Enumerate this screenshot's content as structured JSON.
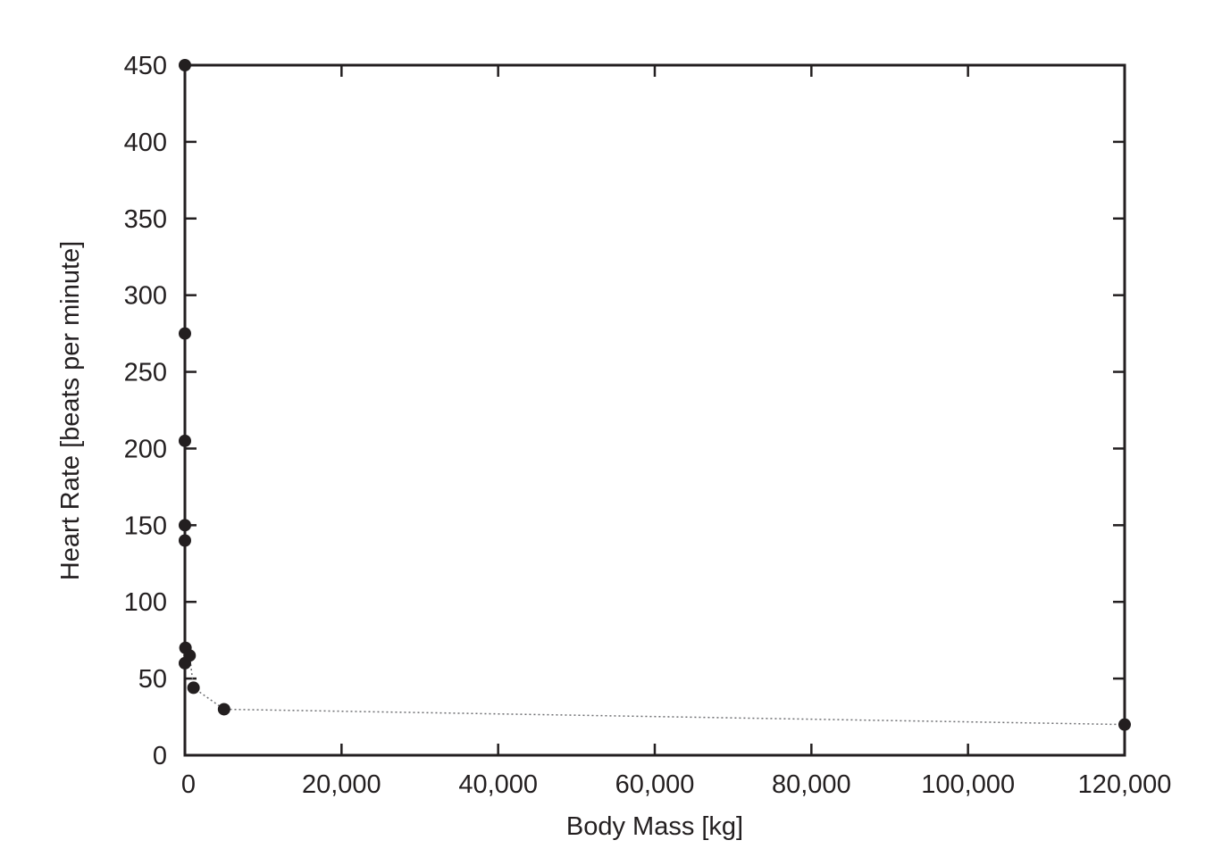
{
  "chart_data": {
    "type": "scatter",
    "title": "",
    "xlabel": "Body Mass [kg]",
    "ylabel": "Heart Rate [beats per minute]",
    "xlim": [
      0,
      120000
    ],
    "ylim": [
      0,
      450
    ],
    "grid": false,
    "x_ticks": [
      0,
      20000,
      40000,
      60000,
      80000,
      100000,
      120000
    ],
    "x_tick_labels": [
      "0",
      "20,000",
      "40,000",
      "60,000",
      "80,000",
      "100,000",
      "120,000"
    ],
    "y_ticks": [
      0,
      50,
      100,
      150,
      200,
      250,
      300,
      350,
      400,
      450
    ],
    "y_tick_labels": [
      "0",
      "50",
      "100",
      "150",
      "200",
      "250",
      "300",
      "350",
      "400",
      "450"
    ],
    "marker_color": "#231f20",
    "line_color": "#6d6e71",
    "line_style": "dotted",
    "series": [
      {
        "points": [
          {
            "x": 0,
            "y": 450
          },
          {
            "x": 0,
            "y": 275
          },
          {
            "x": 0,
            "y": 205
          },
          {
            "x": 0,
            "y": 150
          },
          {
            "x": 0,
            "y": 140
          },
          {
            "x": 70,
            "y": 70
          },
          {
            "x": 0,
            "y": 60
          },
          {
            "x": 600,
            "y": 65
          },
          {
            "x": 1100,
            "y": 44
          },
          {
            "x": 5000,
            "y": 30
          },
          {
            "x": 120000,
            "y": 20
          }
        ]
      }
    ]
  }
}
